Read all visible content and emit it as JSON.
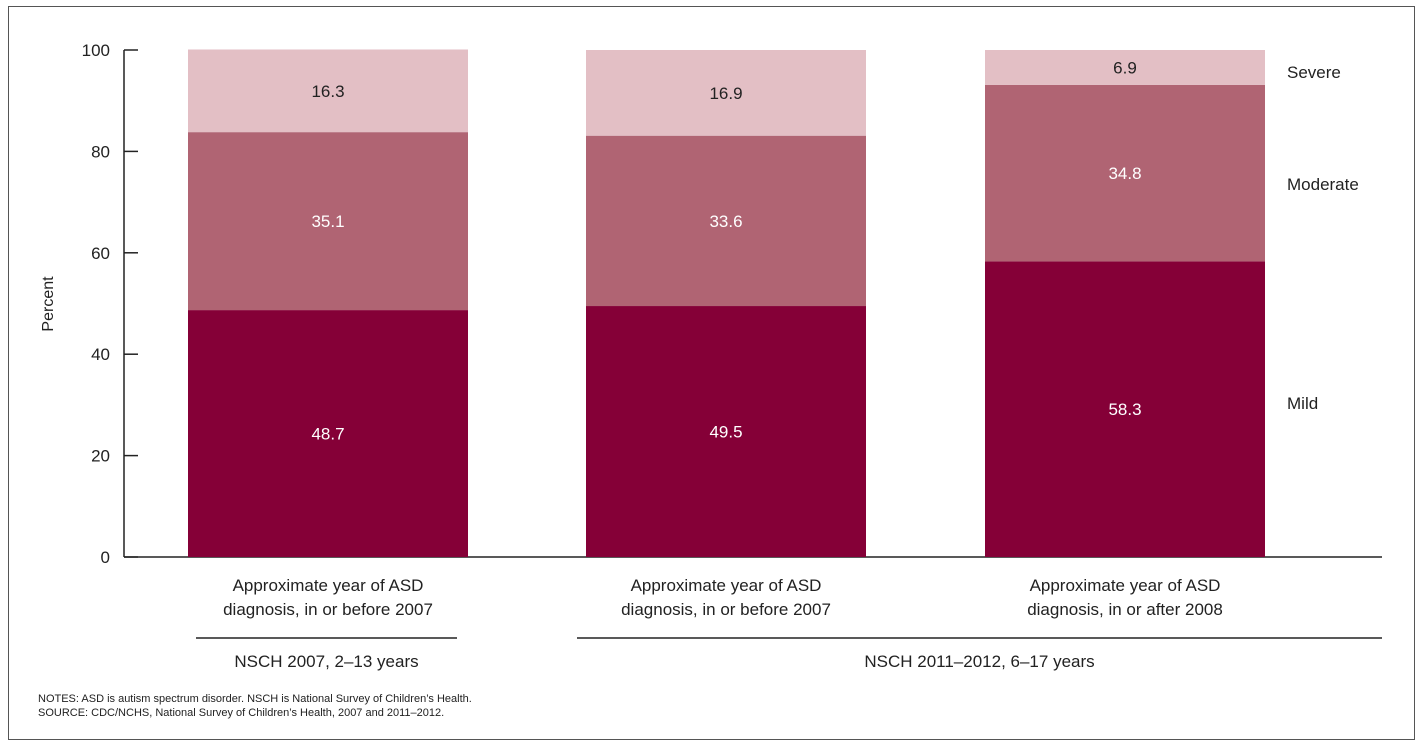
{
  "chart_data": {
    "type": "bar",
    "stacked": true,
    "ylabel": "Percent",
    "ylim": [
      0,
      100
    ],
    "yticks": [
      0,
      20,
      40,
      60,
      80,
      100
    ],
    "grid": false,
    "categories": [
      [
        "Approximate year of ASD",
        "diagnosis, in or before 2007"
      ],
      [
        "Approximate year of ASD",
        "diagnosis, in or before 2007"
      ],
      [
        "Approximate year of ASD",
        "diagnosis, in or after 2008"
      ]
    ],
    "groups": [
      {
        "label": "NSCH 2007, 2–13 years",
        "categories": [
          0
        ]
      },
      {
        "label": "NSCH 2011–2012, 6–17 years",
        "categories": [
          1,
          2
        ]
      }
    ],
    "series": [
      {
        "name": "Mild",
        "values": [
          48.7,
          49.5,
          58.3
        ],
        "color": "#850037",
        "label_color": "#ffffff"
      },
      {
        "name": "Moderate",
        "values": [
          35.1,
          33.6,
          34.8
        ],
        "color": "#b06473",
        "label_color": "#ffffff"
      },
      {
        "name": "Severe",
        "values": [
          16.3,
          16.9,
          6.9
        ],
        "color": "#e3bfc5",
        "label_color": "#222222"
      }
    ],
    "legend_placement": "right"
  },
  "notes": {
    "line1": "NOTES: ASD is autism spectrum disorder. NSCH is National Survey of Children’s Health.",
    "line2": "SOURCE: CDC/NCHS, National Survey of Children’s Health, 2007 and 2011–2012."
  }
}
